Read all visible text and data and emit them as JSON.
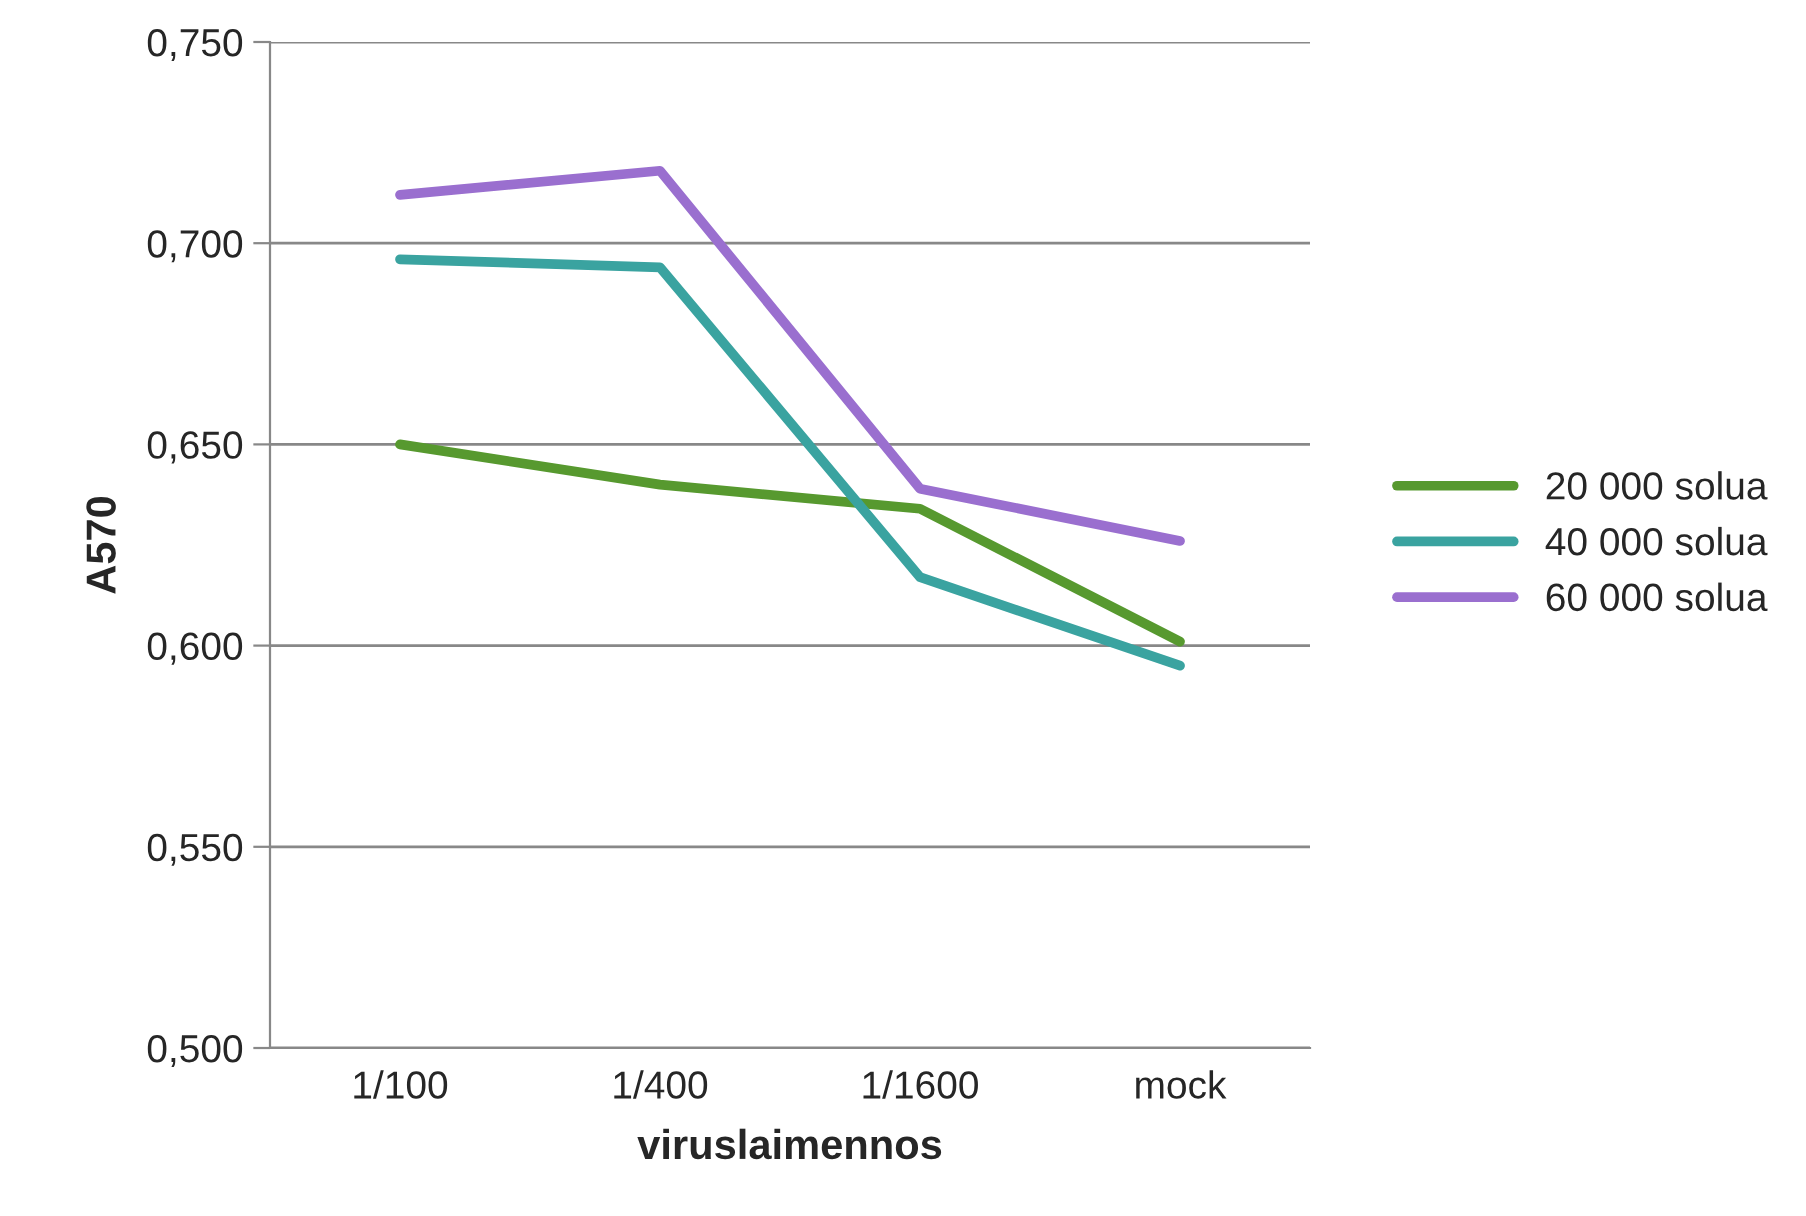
{
  "chart_data": {
    "type": "line",
    "xlabel": "viruslaimennos",
    "ylabel": "A570",
    "categories": [
      "1/100",
      "1/400",
      "1/1600",
      "mock"
    ],
    "series": [
      {
        "name": "20 000 solua",
        "color": "#57992f",
        "values": [
          0.65,
          0.64,
          0.634,
          0.601
        ]
      },
      {
        "name": "40 000 solua",
        "color": "#3aa3a0",
        "values": [
          0.696,
          0.694,
          0.617,
          0.595
        ]
      },
      {
        "name": "60 000 solua",
        "color": "#9a6fcf",
        "values": [
          0.712,
          0.718,
          0.639,
          0.626
        ]
      }
    ],
    "ylim": [
      0.5,
      0.75
    ],
    "yticks": [
      {
        "value": 0.5,
        "label": "0,500"
      },
      {
        "value": 0.55,
        "label": "0,550"
      },
      {
        "value": 0.6,
        "label": "0,600"
      },
      {
        "value": 0.65,
        "label": "0,650"
      },
      {
        "value": 0.7,
        "label": "0,700"
      },
      {
        "value": 0.75,
        "label": "0,750"
      }
    ],
    "grid": "y",
    "legend": "right",
    "marker": "none",
    "line_style": "solid"
  }
}
